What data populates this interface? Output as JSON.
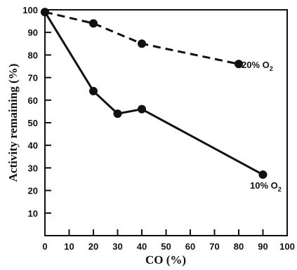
{
  "chart_data": {
    "type": "line",
    "title": "",
    "xlabel": "CO (%)",
    "ylabel": "Activity remaining (%)",
    "xlim": [
      0,
      100
    ],
    "ylim": [
      0,
      100
    ],
    "xticks": [
      "0",
      "10",
      "20",
      "30",
      "40",
      "50",
      "60",
      "70",
      "80",
      "90",
      "100"
    ],
    "yticks": [
      "10",
      "20",
      "30",
      "40",
      "50",
      "60",
      "70",
      "80",
      "90",
      "100"
    ],
    "grid": false,
    "legend": "none",
    "series": [
      {
        "name": "20% O2",
        "label_main": "20% O",
        "label_sub": "2",
        "style": "dashed",
        "x": [
          0,
          20,
          40,
          80
        ],
        "y": [
          99,
          94,
          85,
          76
        ]
      },
      {
        "name": "10% O2",
        "label_main": "10% O",
        "label_sub": "2",
        "style": "solid",
        "x": [
          0,
          20,
          30,
          40,
          90
        ],
        "y": [
          99,
          64,
          54,
          56,
          27
        ]
      }
    ],
    "colors": {
      "line": "#111111",
      "marker": "#111111"
    }
  }
}
